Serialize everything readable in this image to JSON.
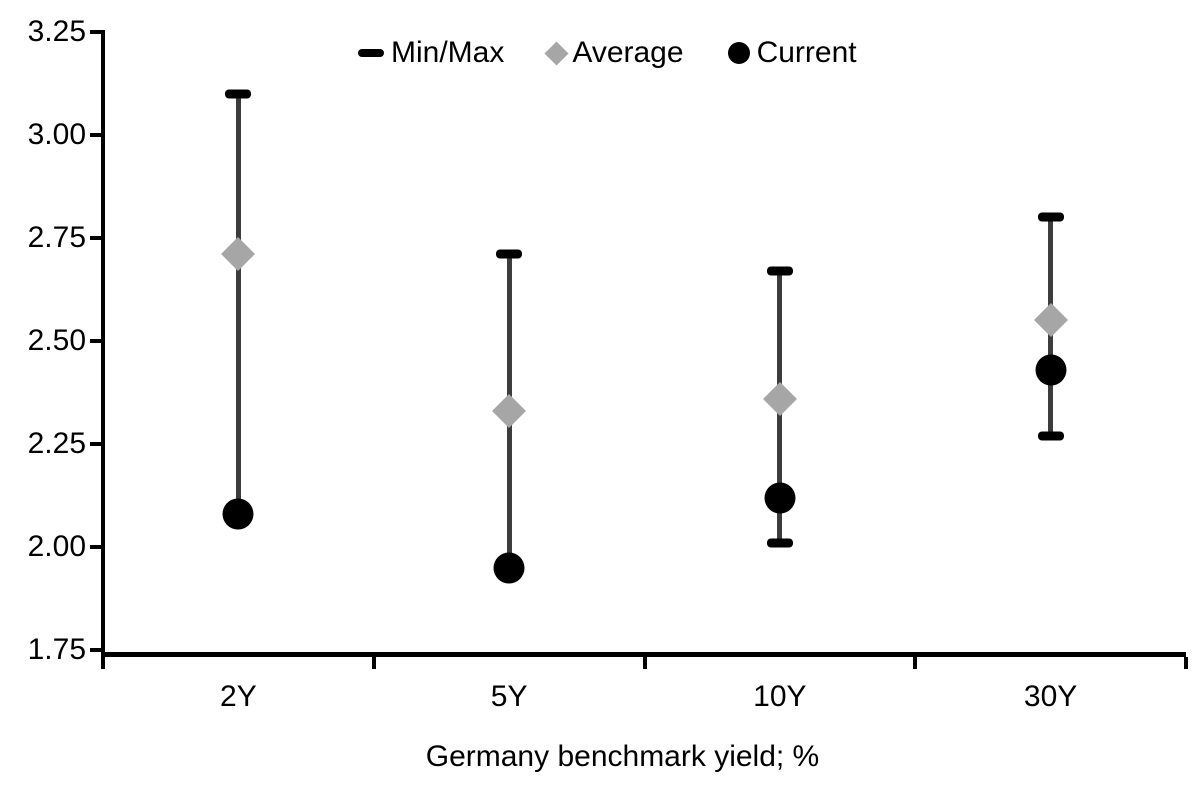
{
  "chart_data": {
    "type": "scatter",
    "subtype": "min-max-range-with-markers",
    "title": "",
    "xlabel": "Germany benchmark yield; %",
    "ylabel": "",
    "categories": [
      "2Y",
      "5Y",
      "10Y",
      "30Y"
    ],
    "series": [
      {
        "name": "Min/Max",
        "role": "range",
        "min": [
          2.08,
          1.95,
          2.01,
          2.27
        ],
        "max": [
          3.1,
          2.71,
          2.67,
          2.8
        ]
      },
      {
        "name": "Average",
        "role": "diamond-marker",
        "values": [
          2.71,
          2.33,
          2.36,
          2.55
        ]
      },
      {
        "name": "Current",
        "role": "circle-marker",
        "values": [
          2.08,
          1.95,
          2.12,
          2.43
        ]
      }
    ],
    "ylim": [
      1.75,
      3.25
    ],
    "ytick_step": 0.25,
    "ytick_labels": [
      "3.25",
      "3.00",
      "2.75",
      "2.50",
      "2.25",
      "2.00",
      "1.75"
    ],
    "grid": false,
    "legend_position": "top-center",
    "colors": {
      "range_line": "#3c3c3c",
      "range_cap": "#000000",
      "average_marker": "#a6a6a6",
      "current_marker": "#000000",
      "axis": "#000000",
      "text": "#000000",
      "background": "#ffffff"
    }
  }
}
